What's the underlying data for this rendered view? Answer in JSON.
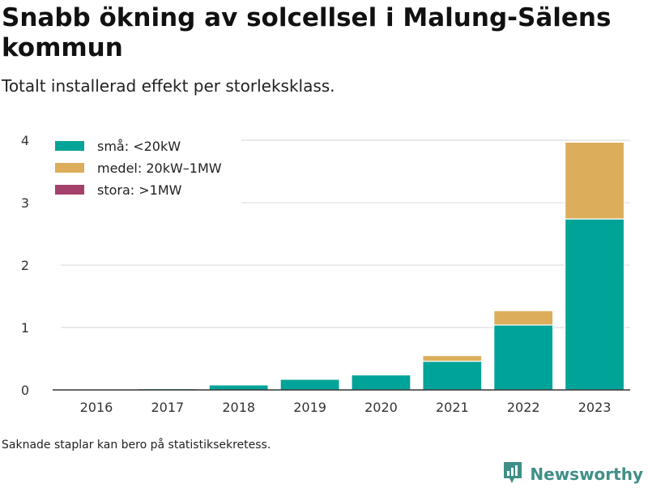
{
  "header": {
    "title": "Snabb ökning av solcellsel i Malung-Sälens kommun",
    "subtitle": "Totalt installerad effekt per storleksklass."
  },
  "footer": {
    "note": "Saknade staplar kan bero på statistiksekretess.",
    "brand": "Newsworthy",
    "brand_icon": "newsworthy-logo-icon",
    "brand_color": "#3f8f87"
  },
  "chart_data": {
    "type": "bar",
    "stacked": true,
    "title": "Snabb ökning av solcellsel i Malung-Sälens kommun",
    "subtitle": "Totalt installerad effekt per storleksklass.",
    "xlabel": "",
    "ylabel": "",
    "categories": [
      "2016",
      "2017",
      "2018",
      "2019",
      "2020",
      "2021",
      "2022",
      "2023"
    ],
    "ylim": [
      0,
      4.3
    ],
    "yticks": [
      0,
      1,
      2,
      3,
      4
    ],
    "grid": true,
    "legend_position": "top-left",
    "series": [
      {
        "name": "små: <20kW",
        "color": "#00a398",
        "values": [
          0.0,
          0.02,
          0.08,
          0.17,
          0.24,
          0.46,
          1.04,
          2.74
        ]
      },
      {
        "name": "medel: 20kW–1MW",
        "color": "#dcae5b",
        "values": [
          0.0,
          0.0,
          0.0,
          0.0,
          0.0,
          0.09,
          0.23,
          1.23
        ]
      },
      {
        "name": "stora: >1MW",
        "color": "#a3416b",
        "values": [
          0.0,
          0.0,
          0.0,
          0.0,
          0.0,
          0.0,
          0.0,
          0.0
        ]
      }
    ]
  }
}
